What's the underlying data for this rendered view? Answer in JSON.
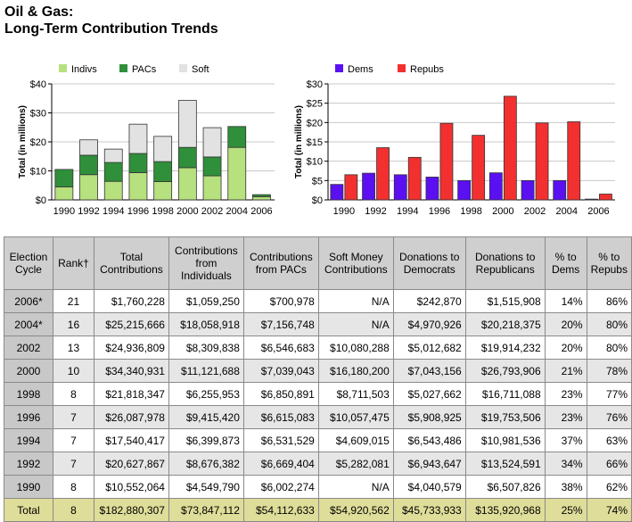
{
  "title": {
    "line1": "Oil & Gas:",
    "line2": "Long-Term Contribution Trends"
  },
  "colors": {
    "indivs": "#b7e07e",
    "pacs": "#2f8f3a",
    "soft": "#e2e2e2",
    "dems": "#5b10f2",
    "repubs": "#f23030"
  },
  "chart_data": [
    {
      "type": "bar",
      "stacked": true,
      "categories": [
        "1990",
        "1992",
        "1994",
        "1996",
        "1998",
        "2000",
        "2002",
        "2004",
        "2006"
      ],
      "series": [
        {
          "name": "Indivs",
          "values": [
            4.5,
            8.7,
            6.4,
            9.4,
            6.3,
            11.1,
            8.3,
            18.1,
            1.1
          ]
        },
        {
          "name": "PACs",
          "values": [
            6.0,
            6.7,
            6.5,
            6.6,
            6.9,
            7.0,
            6.5,
            7.2,
            0.7
          ]
        },
        {
          "name": "Soft",
          "values": [
            0,
            5.3,
            4.6,
            10.1,
            8.7,
            16.2,
            10.1,
            0,
            0
          ]
        }
      ],
      "ylabel": "Total (in millions)",
      "ylim": [
        0,
        40
      ],
      "yticks": [
        "$0",
        "$10",
        "$20",
        "$30",
        "$40"
      ],
      "legend": "top-left",
      "grid": true
    },
    {
      "type": "bar",
      "categories": [
        "1990",
        "1992",
        "1994",
        "1996",
        "1998",
        "2000",
        "2002",
        "2004",
        "2006"
      ],
      "series": [
        {
          "name": "Dems",
          "values": [
            4.0,
            6.9,
            6.5,
            5.9,
            5.0,
            7.0,
            5.0,
            5.0,
            0.2
          ]
        },
        {
          "name": "Repubs",
          "values": [
            6.5,
            13.5,
            11.0,
            19.8,
            16.7,
            26.8,
            19.9,
            20.2,
            1.5
          ]
        }
      ],
      "ylabel": "Total (in millions)",
      "ylim": [
        0,
        30
      ],
      "yticks": [
        "$0",
        "$5",
        "$10",
        "$15",
        "$20",
        "$25",
        "$30"
      ],
      "legend": "top-left",
      "grid": true
    }
  ],
  "table": {
    "headers": [
      "Election Cycle",
      "Rank†",
      "Total Contributions",
      "Contributions from Individuals",
      "Contributions from PACs",
      "Soft Money Contributions",
      "Donations to Democrats",
      "Donations to Republicans",
      "% to Dems",
      "% to Repubs"
    ],
    "rows": [
      [
        "2006*",
        "21",
        "$1,760,228",
        "$1,059,250",
        "$700,978",
        "N/A",
        "$242,870",
        "$1,515,908",
        "14%",
        "86%"
      ],
      [
        "2004*",
        "16",
        "$25,215,666",
        "$18,058,918",
        "$7,156,748",
        "N/A",
        "$4,970,926",
        "$20,218,375",
        "20%",
        "80%"
      ],
      [
        "2002",
        "13",
        "$24,936,809",
        "$8,309,838",
        "$6,546,683",
        "$10,080,288",
        "$5,012,682",
        "$19,914,232",
        "20%",
        "80%"
      ],
      [
        "2000",
        "10",
        "$34,340,931",
        "$11,121,688",
        "$7,039,043",
        "$16,180,200",
        "$7,043,156",
        "$26,793,906",
        "21%",
        "78%"
      ],
      [
        "1998",
        "8",
        "$21,818,347",
        "$6,255,953",
        "$6,850,891",
        "$8,711,503",
        "$5,027,662",
        "$16,711,088",
        "23%",
        "77%"
      ],
      [
        "1996",
        "7",
        "$26,087,978",
        "$9,415,420",
        "$6,615,083",
        "$10,057,475",
        "$5,908,925",
        "$19,753,506",
        "23%",
        "76%"
      ],
      [
        "1994",
        "7",
        "$17,540,417",
        "$6,399,873",
        "$6,531,529",
        "$4,609,015",
        "$6,543,486",
        "$10,981,536",
        "37%",
        "63%"
      ],
      [
        "1992",
        "7",
        "$20,627,867",
        "$8,676,382",
        "$6,669,404",
        "$5,282,081",
        "$6,943,647",
        "$13,524,591",
        "34%",
        "66%"
      ],
      [
        "1990",
        "8",
        "$10,552,064",
        "$4,549,790",
        "$6,002,274",
        "N/A",
        "$4,040,579",
        "$6,507,826",
        "38%",
        "62%"
      ]
    ],
    "total": [
      "Total",
      "8",
      "$182,880,307",
      "$73,847,112",
      "$54,112,633",
      "$54,920,562",
      "$45,733,933",
      "$135,920,968",
      "25%",
      "74%"
    ]
  }
}
